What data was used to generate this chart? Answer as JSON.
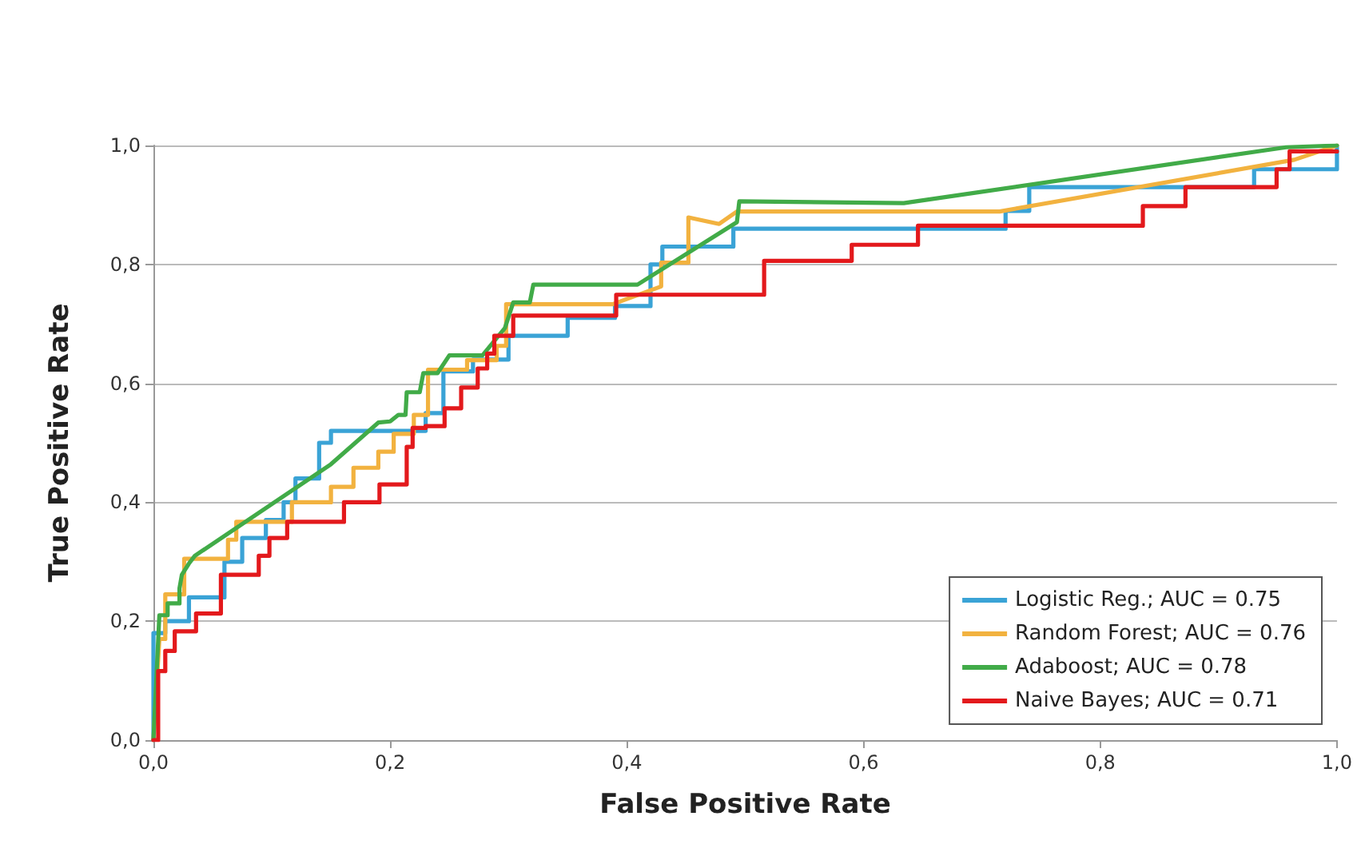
{
  "chart_data": {
    "type": "line",
    "xlabel": "False Positive Rate",
    "ylabel": "True Positive Rate",
    "xlim": [
      0,
      1
    ],
    "ylim": [
      0,
      1
    ],
    "xticks": [
      {
        "value": 0,
        "label": "0,0"
      },
      {
        "value": 0.2,
        "label": "0,2"
      },
      {
        "value": 0.4,
        "label": "0,4"
      },
      {
        "value": 0.6,
        "label": "0,6"
      },
      {
        "value": 0.8,
        "label": "0,8"
      },
      {
        "value": 1,
        "label": "1,0"
      }
    ],
    "yticks": [
      {
        "value": 0,
        "label": "0,0"
      },
      {
        "value": 0.2,
        "label": "0,2"
      },
      {
        "value": 0.4,
        "label": "0,4"
      },
      {
        "value": 0.6,
        "label": "0,6"
      },
      {
        "value": 0.8,
        "label": "0,8"
      },
      {
        "value": 1,
        "label": "1,0"
      }
    ],
    "grid": "y",
    "legend": "bottom right",
    "marker": "none",
    "line_style": "solid",
    "series": [
      {
        "name": "Logistic Reg.; AUC = 0.75",
        "color": "#3aa3d6",
        "x": [
          0,
          0,
          0.01,
          0.01,
          0.03,
          0.03,
          0.06,
          0.06,
          0.075,
          0.075,
          0.095,
          0.095,
          0.11,
          0.11,
          0.12,
          0.12,
          0.14,
          0.14,
          0.15,
          0.15,
          0.23,
          0.23,
          0.245,
          0.245,
          0.27,
          0.27,
          0.3,
          0.3,
          0.35,
          0.35,
          0.39,
          0.39,
          0.42,
          0.42,
          0.43,
          0.43,
          0.49,
          0.49,
          0.72,
          0.72,
          0.74,
          0.74,
          0.93,
          0.93,
          1,
          1
        ],
        "values": [
          0,
          0.18,
          0.18,
          0.2,
          0.2,
          0.24,
          0.24,
          0.3,
          0.3,
          0.34,
          0.34,
          0.37,
          0.37,
          0.4,
          0.4,
          0.44,
          0.44,
          0.5,
          0.5,
          0.52,
          0.52,
          0.55,
          0.55,
          0.62,
          0.62,
          0.64,
          0.64,
          0.68,
          0.68,
          0.71,
          0.71,
          0.73,
          0.73,
          0.8,
          0.8,
          0.83,
          0.83,
          0.86,
          0.86,
          0.89,
          0.89,
          0.93,
          0.93,
          0.96,
          0.96,
          1
        ]
      },
      {
        "name": "Random Forest; AUC = 0.76",
        "color": "#f2b23f",
        "x": [
          0,
          0.005,
          0.01,
          0.01,
          0.026,
          0.026,
          0.063,
          0.063,
          0.07,
          0.07,
          0.117,
          0.117,
          0.15,
          0.15,
          0.169,
          0.169,
          0.19,
          0.19,
          0.203,
          0.203,
          0.22,
          0.22,
          0.232,
          0.232,
          0.265,
          0.265,
          0.29,
          0.29,
          0.298,
          0.298,
          0.388,
          0.429,
          0.429,
          0.452,
          0.452,
          0.478,
          0.493,
          0.715,
          0.964,
          1
        ],
        "values": [
          0,
          0.17,
          0.17,
          0.245,
          0.245,
          0.305,
          0.305,
          0.337,
          0.337,
          0.367,
          0.367,
          0.4,
          0.4,
          0.426,
          0.426,
          0.458,
          0.458,
          0.485,
          0.485,
          0.515,
          0.515,
          0.547,
          0.547,
          0.623,
          0.623,
          0.639,
          0.639,
          0.663,
          0.663,
          0.733,
          0.733,
          0.763,
          0.803,
          0.803,
          0.879,
          0.868,
          0.889,
          0.889,
          0.976,
          1
        ]
      },
      {
        "name": "Adaboost; AUC = 0.78",
        "color": "#41ab48",
        "x": [
          0,
          0.005,
          0.012,
          0.012,
          0.022,
          0.022,
          0.024,
          0.03,
          0.035,
          0.15,
          0.19,
          0.2,
          0.207,
          0.213,
          0.214,
          0.225,
          0.228,
          0.24,
          0.25,
          0.278,
          0.297,
          0.304,
          0.318,
          0.321,
          0.409,
          0.493,
          0.495,
          0.634,
          0.957,
          1
        ],
        "values": [
          0,
          0.21,
          0.21,
          0.23,
          0.23,
          0.255,
          0.278,
          0.297,
          0.31,
          0.464,
          0.534,
          0.536,
          0.547,
          0.547,
          0.585,
          0.585,
          0.617,
          0.617,
          0.647,
          0.647,
          0.693,
          0.736,
          0.736,
          0.766,
          0.766,
          0.871,
          0.906,
          0.903,
          0.997,
          1
        ]
      },
      {
        "name": "Naive Bayes; AUC = 0.71",
        "color": "#e3191c",
        "x": [
          0,
          0.004,
          0.004,
          0.01,
          0.01,
          0.018,
          0.018,
          0.036,
          0.036,
          0.057,
          0.057,
          0.089,
          0.089,
          0.098,
          0.098,
          0.113,
          0.113,
          0.161,
          0.161,
          0.191,
          0.191,
          0.214,
          0.214,
          0.219,
          0.219,
          0.23,
          0.23,
          0.246,
          0.246,
          0.26,
          0.26,
          0.274,
          0.274,
          0.282,
          0.282,
          0.288,
          0.288,
          0.304,
          0.304,
          0.391,
          0.391,
          0.516,
          0.516,
          0.59,
          0.59,
          0.646,
          0.646,
          0.836,
          0.836,
          0.872,
          0.872,
          0.949,
          0.949,
          0.96,
          0.96,
          1
        ],
        "values": [
          0,
          0,
          0.116,
          0.116,
          0.15,
          0.15,
          0.183,
          0.183,
          0.213,
          0.213,
          0.278,
          0.278,
          0.31,
          0.31,
          0.34,
          0.34,
          0.367,
          0.367,
          0.4,
          0.4,
          0.43,
          0.43,
          0.493,
          0.493,
          0.525,
          0.525,
          0.528,
          0.528,
          0.558,
          0.558,
          0.593,
          0.593,
          0.625,
          0.625,
          0.65,
          0.65,
          0.68,
          0.68,
          0.714,
          0.714,
          0.749,
          0.749,
          0.806,
          0.806,
          0.833,
          0.833,
          0.865,
          0.865,
          0.898,
          0.898,
          0.93,
          0.93,
          0.96,
          0.96,
          0.99,
          0.99
        ]
      }
    ]
  }
}
